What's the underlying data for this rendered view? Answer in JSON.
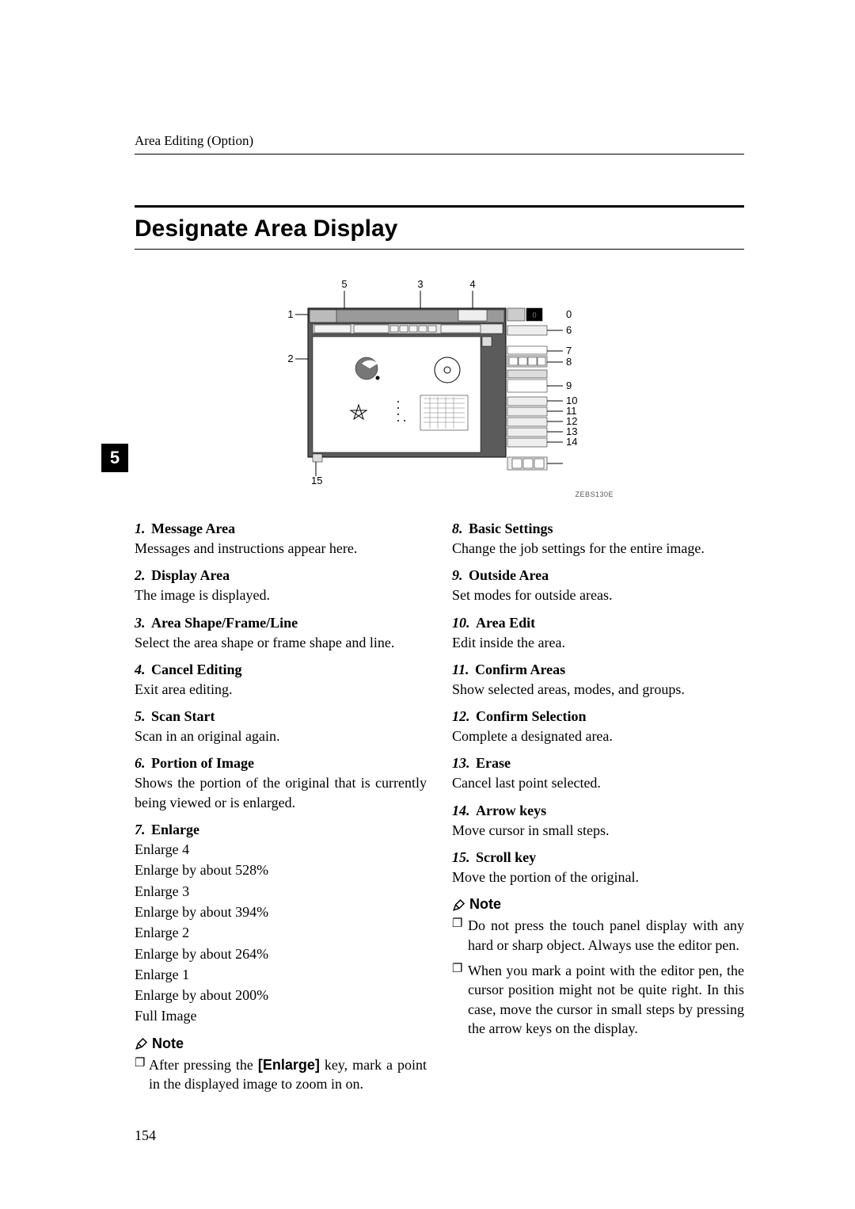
{
  "running_head": "Area Editing (Option)",
  "title": "Designate Area Display",
  "chapter_num": "5",
  "diag_code": "ZEBS130E",
  "page_num": "154",
  "callouts": {
    "top": [
      "5",
      "3",
      "4"
    ],
    "left": [
      "1",
      "2"
    ],
    "right": [
      "0",
      "6",
      "7",
      "8",
      "9",
      "10",
      "11",
      "12",
      "13",
      "14"
    ],
    "bottom": [
      "15"
    ]
  },
  "left_items": [
    {
      "num": "1.",
      "label": "Message Area",
      "body": "Messages and instructions appear here."
    },
    {
      "num": "2.",
      "label": "Display Area",
      "body": "The image is displayed."
    },
    {
      "num": "3.",
      "label": "Area Shape/Frame/Line",
      "body": "Select the area shape or frame shape and line."
    },
    {
      "num": "4.",
      "label": "Cancel Editing",
      "body": "Exit area editing."
    },
    {
      "num": "5.",
      "label": "Scan Start",
      "body": "Scan in an original again."
    },
    {
      "num": "6.",
      "label": "Portion of Image",
      "body": "Shows the portion of the original that is currently being viewed or is enlarged."
    }
  ],
  "enlarge": {
    "num": "7.",
    "label": "Enlarge",
    "lines": [
      "Enlarge 4",
      "Enlarge by about 528%",
      "Enlarge 3",
      "Enlarge by about 394%",
      "Enlarge 2",
      "Enlarge by about 264%",
      "Enlarge 1",
      "Enlarge by about 200%",
      "Full Image"
    ]
  },
  "note_label": "Note",
  "left_note_pre": "After pressing the ",
  "left_note_kw": "[Enlarge]",
  "left_note_post": " key, mark a point in the displayed image to zoom in on.",
  "right_items": [
    {
      "num": "8.",
      "label": "Basic Settings",
      "body": "Change the job settings for the entire image."
    },
    {
      "num": "9.",
      "label": "Outside Area",
      "body": "Set modes for outside areas."
    },
    {
      "num": "10.",
      "label": "Area Edit",
      "body": "Edit inside the area."
    },
    {
      "num": "11.",
      "label": "Confirm Areas",
      "body": "Show selected areas, modes, and groups."
    },
    {
      "num": "12.",
      "label": "Confirm Selection",
      "body": "Complete a designated area."
    },
    {
      "num": "13.",
      "label": "Erase",
      "body": "Cancel last point selected."
    },
    {
      "num": "14.",
      "label": "Arrow keys",
      "body": "Move cursor in small steps."
    },
    {
      "num": "15.",
      "label": "Scroll key",
      "body": "Move the portion of the original."
    }
  ],
  "right_notes": [
    "Do not press the touch panel display with any hard or sharp object. Always use the editor pen.",
    "When you mark a point with the editor pen, the cursor position might not be quite right. In this case, move the cursor in small steps by pressing the arrow keys on the display."
  ]
}
